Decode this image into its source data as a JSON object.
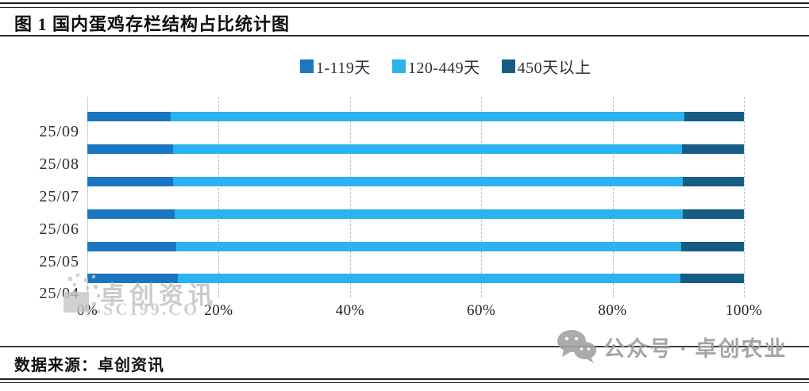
{
  "header": {
    "title": "图 1  国内蛋鸡存栏结构占比统计图"
  },
  "footer": {
    "source": "数据来源：卓创资讯"
  },
  "watermarks": {
    "plot_line1": "卓创资讯",
    "plot_line2": "SCI99.CO",
    "footer_text": "公众号 · 卓创农业",
    "color": "#9e9e9e"
  },
  "chart_data": {
    "type": "bar",
    "orientation": "horizontal",
    "stacked": true,
    "title": "国内蛋鸡存栏结构占比统计图",
    "categories": [
      "25/09",
      "25/08",
      "25/07",
      "25/06",
      "25/05",
      "25/04"
    ],
    "series": [
      {
        "name": "1-119天",
        "color": "#1a76c0",
        "values": [
          12.7,
          13.0,
          13.1,
          13.3,
          13.5,
          13.8
        ]
      },
      {
        "name": "120-449天",
        "color": "#2ab3ee",
        "values": [
          78.2,
          77.6,
          77.6,
          77.4,
          76.9,
          76.5
        ]
      },
      {
        "name": "450天以上",
        "color": "#155d84",
        "values": [
          9.1,
          9.4,
          9.3,
          9.3,
          9.6,
          9.7
        ]
      }
    ],
    "x_axis": {
      "min": 0,
      "max": 100,
      "ticks": [
        "0%",
        "20%",
        "40%",
        "60%",
        "80%",
        "100%"
      ]
    },
    "grid": "vertical dashed at 20% steps, solid axis at 0%",
    "legend_position": "top-center",
    "axis_color": "#cfcfcf"
  }
}
